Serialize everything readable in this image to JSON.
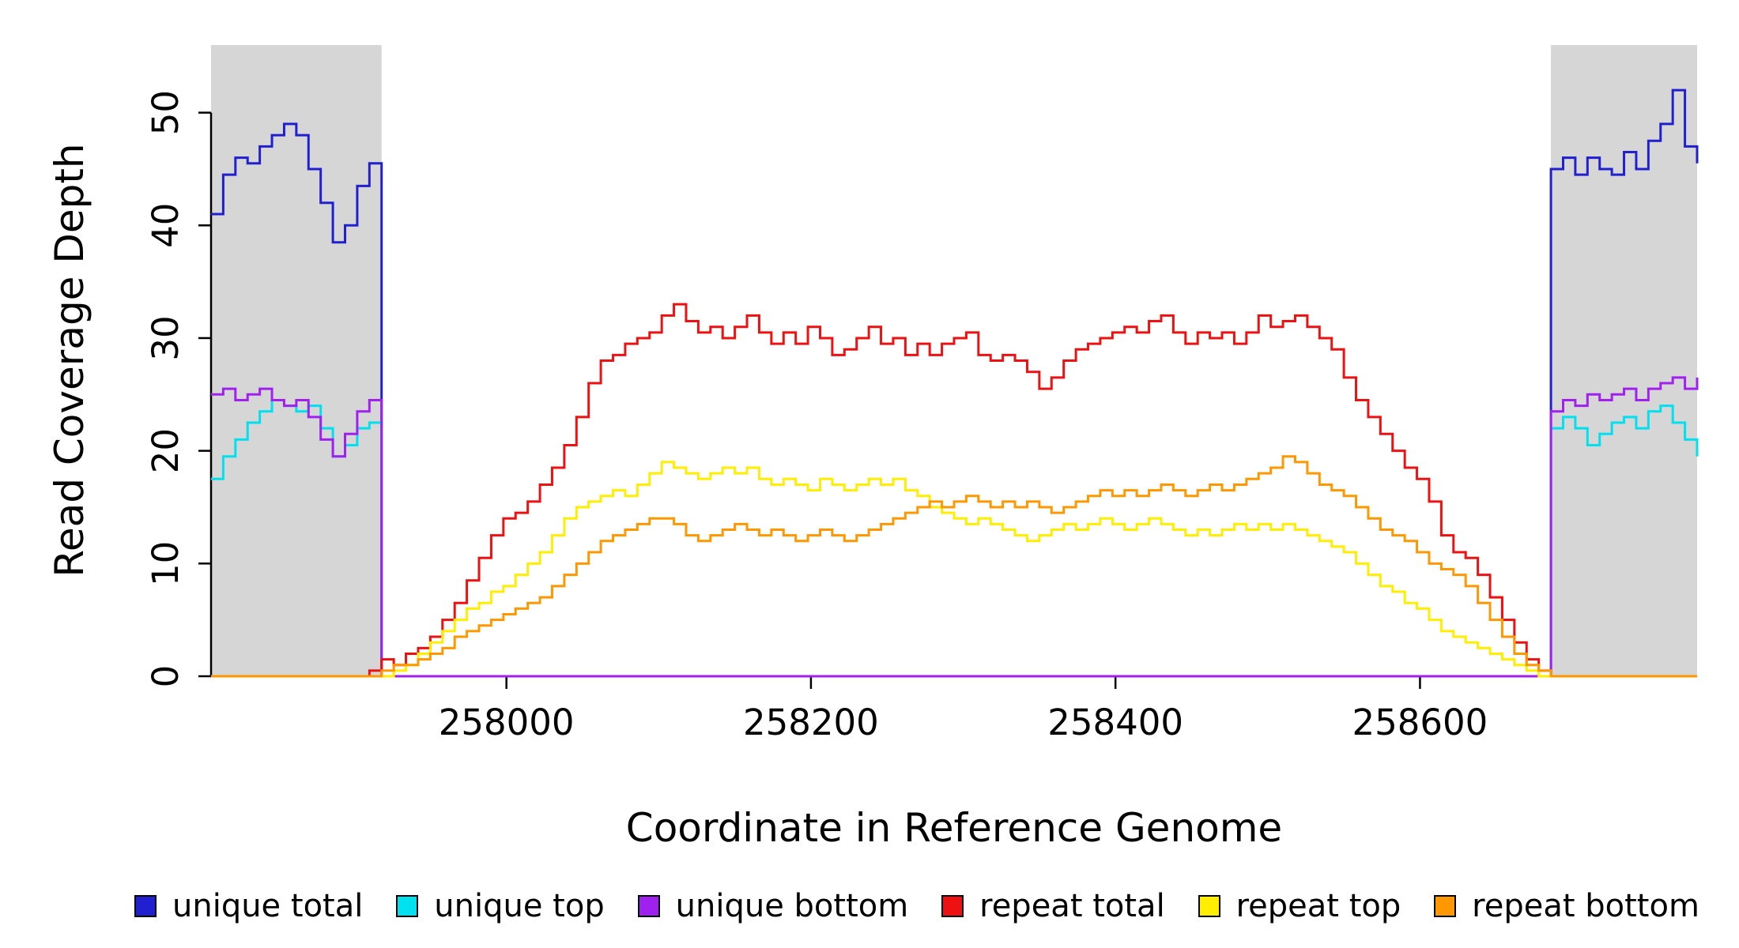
{
  "chart_data": {
    "type": "line",
    "title": "",
    "xlabel": "Coordinate in Reference Genome",
    "ylabel": "Read Coverage Depth",
    "xlim": [
      257806,
      258782
    ],
    "ylim": [
      0,
      56
    ],
    "x_ticks": [
      258000,
      258200,
      258400,
      258600
    ],
    "y_ticks": [
      0,
      10,
      20,
      30,
      40,
      50
    ],
    "grid": false,
    "legend_position": "bottom",
    "x_start": 257806,
    "x_step": 8,
    "n_points": 123,
    "baseline_value": 0,
    "shaded_regions": [
      {
        "x0": 257806,
        "x1": 257918,
        "color": "#d6d6d6"
      },
      {
        "x0": 258686,
        "x1": 258782,
        "color": "#d6d6d6"
      }
    ],
    "series": [
      {
        "name": "unique total",
        "slug": "unique-total",
        "color": "#2020d0",
        "segments": [
          {
            "start_index": 0,
            "values": [
              41,
              44.5,
              46,
              45.5,
              47,
              48,
              49,
              48,
              45,
              42,
              38.5,
              40,
              43.5,
              45.5
            ]
          },
          {
            "start_index": 110,
            "values": [
              45,
              46,
              44.5,
              46,
              45,
              44.5,
              46.5,
              45,
              47.5,
              49,
              52,
              47,
              45.5
            ]
          }
        ]
      },
      {
        "name": "unique top",
        "slug": "unique-top",
        "color": "#00e0ee",
        "segments": [
          {
            "start_index": 0,
            "values": [
              17.5,
              19.5,
              21,
              22.5,
              23.5,
              24.5,
              24,
              23.5,
              24,
              22,
              19.5,
              20.5,
              22,
              22.5
            ]
          },
          {
            "start_index": 110,
            "values": [
              22,
              23,
              22,
              20.5,
              21.5,
              22.5,
              23,
              22,
              23.5,
              24,
              22.5,
              21,
              19.5
            ]
          }
        ]
      },
      {
        "name": "unique bottom",
        "slug": "unique-bottom",
        "color": "#a020f0",
        "segments": [
          {
            "start_index": 0,
            "values": [
              25,
              25.5,
              24.5,
              25,
              25.5,
              24.5,
              24,
              24.5,
              23,
              21,
              19.5,
              21.5,
              23.5,
              24.5
            ]
          },
          {
            "start_index": 110,
            "values": [
              23.5,
              24.5,
              24,
              25,
              24.5,
              25,
              25.5,
              24.5,
              25.5,
              26,
              26.5,
              25.5,
              26.5
            ]
          }
        ]
      },
      {
        "name": "repeat total",
        "slug": "repeat-total",
        "color": "#ee1111",
        "segments": [
          {
            "start_index": 13,
            "values": [
              0.5,
              1.5,
              1,
              2,
              2.5,
              3.5,
              5,
              6.5,
              8.5,
              10.5,
              12.5,
              14,
              14.5,
              15.5,
              17,
              18.5,
              20.5,
              23,
              26,
              28,
              28.5,
              29.5,
              30,
              30.5,
              32,
              33,
              31.5,
              30.5,
              31,
              30,
              31,
              32,
              30.5,
              29.5,
              30.5,
              29.5,
              31,
              30,
              28.5,
              29,
              30,
              31,
              29.5,
              30,
              28.5,
              29.5,
              28.5,
              29.5,
              30,
              30.5,
              28.5,
              28,
              28.5,
              28,
              27,
              25.5,
              26.5,
              28,
              29,
              29.5,
              30,
              30.5,
              31,
              30.5,
              31.5,
              32,
              30.5,
              29.5,
              30.5,
              30,
              30.5,
              29.5,
              30.5,
              32,
              31,
              31.5,
              32,
              31,
              30,
              29,
              26.5,
              24.5,
              23,
              21.5,
              20,
              18.5,
              17.5,
              15.5,
              12.5,
              11,
              10.5,
              9,
              7,
              5,
              3,
              1.5,
              0.5
            ]
          }
        ]
      },
      {
        "name": "repeat top",
        "slug": "repeat-top",
        "color": "#ffee00",
        "segments": [
          {
            "start_index": 15,
            "values": [
              0.5,
              1,
              2,
              3,
              4,
              5,
              6,
              6.5,
              7.5,
              8,
              9,
              10,
              11,
              12.5,
              14,
              15,
              15.5,
              16,
              16.5,
              16,
              17,
              18,
              19,
              18.5,
              18,
              17.5,
              18,
              18.5,
              18,
              18.5,
              17.5,
              17,
              17.5,
              17,
              16.5,
              17.5,
              17,
              16.5,
              17,
              17.5,
              17,
              17.5,
              16.5,
              16,
              15,
              14.5,
              14,
              13.5,
              14,
              13.5,
              13,
              12.5,
              12,
              12.5,
              13,
              13.5,
              13,
              13.5,
              14,
              13.5,
              13,
              13.5,
              14,
              13.5,
              13,
              12.5,
              13,
              12.5,
              13,
              13.5,
              13,
              13.5,
              13,
              13.5,
              13,
              12.5,
              12,
              11.5,
              11,
              10,
              9,
              8,
              7.5,
              6.5,
              6,
              5,
              4,
              3.5,
              3,
              2.5,
              2,
              1.5,
              1,
              0.5
            ]
          }
        ]
      },
      {
        "name": "repeat bottom",
        "slug": "repeat-bottom",
        "color": "#ff9800",
        "segments": [
          {
            "start_index": 14,
            "values": [
              0.5,
              1,
              1,
              1.5,
              2,
              2.5,
              3.5,
              4,
              4.5,
              5,
              5.5,
              6,
              6.5,
              7,
              8,
              9,
              10,
              11,
              12,
              12.5,
              13,
              13.5,
              14,
              14,
              13.5,
              12.5,
              12,
              12.5,
              13,
              13.5,
              13,
              12.5,
              13,
              12.5,
              12,
              12.5,
              13,
              12.5,
              12,
              12.5,
              13,
              13.5,
              14,
              14.5,
              15,
              15.5,
              15,
              15.5,
              16,
              15.5,
              15,
              15.5,
              15,
              15.5,
              15,
              14.5,
              15,
              15.5,
              16,
              16.5,
              16,
              16.5,
              16,
              16.5,
              17,
              16.5,
              16,
              16.5,
              17,
              16.5,
              17,
              17.5,
              18,
              18.5,
              19.5,
              19,
              18,
              17,
              16.5,
              16,
              15,
              14,
              13,
              12.5,
              12,
              11,
              10,
              9.5,
              9,
              8,
              6.5,
              5,
              3.5,
              2,
              1,
              0.5
            ]
          }
        ]
      }
    ]
  }
}
